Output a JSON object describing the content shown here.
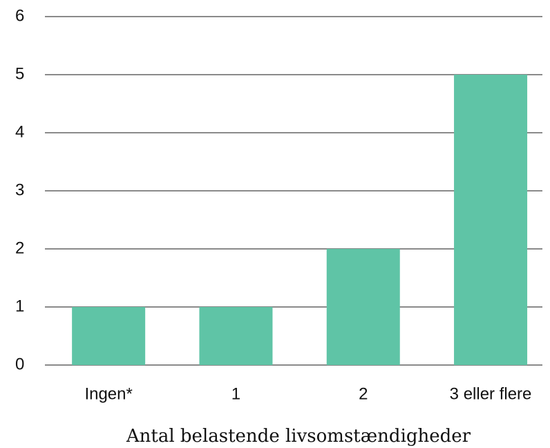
{
  "chart_data": {
    "type": "bar",
    "x_label": "Antal belastende livsomstændigheder",
    "categories": [
      "Ingen*",
      "1",
      "2",
      "3 eller flere"
    ],
    "values": [
      1,
      1,
      2,
      5
    ],
    "color": "#5fc4a6",
    "ylim": [
      0,
      6
    ],
    "yticks": [
      0,
      1,
      2,
      3,
      4,
      5,
      6
    ],
    "grid": true
  }
}
